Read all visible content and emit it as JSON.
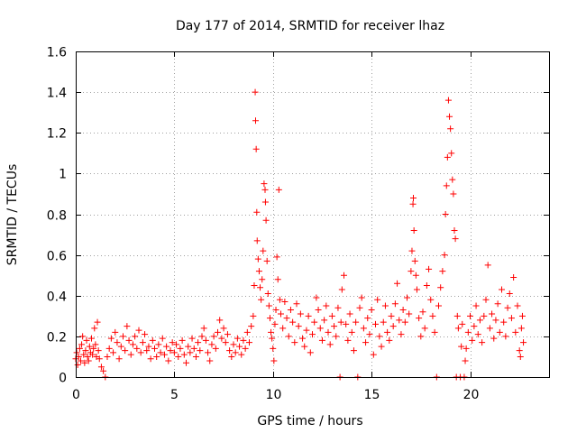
{
  "chart_data": {
    "type": "scatter",
    "title": "Day 177 of 2014, SRMTID for receiver lhaz",
    "xlabel": "GPS time / hours",
    "ylabel": "SRMTID / TECUs",
    "xlim": [
      0,
      24
    ],
    "ylim": [
      0,
      1.6
    ],
    "x_ticks": [
      0,
      5,
      10,
      15,
      20
    ],
    "x_tick_labels": [
      "0",
      "5",
      "10",
      "15",
      "20"
    ],
    "y_ticks": [
      0,
      0.2,
      0.4,
      0.6,
      0.8,
      1.0,
      1.2,
      1.4,
      1.6
    ],
    "y_tick_labels": [
      "0",
      "0.2",
      "0.4",
      "0.6",
      "0.8",
      "1",
      "1.2",
      "1.4",
      "1.6"
    ],
    "grid": true,
    "marker": "plus",
    "series": [
      {
        "name": "SRMTID",
        "color": "#ff0000",
        "points": [
          [
            0.0,
            0.09
          ],
          [
            0.05,
            0.12
          ],
          [
            0.1,
            0.06
          ],
          [
            0.15,
            0.1
          ],
          [
            0.2,
            0.14
          ],
          [
            0.25,
            0.08
          ],
          [
            0.3,
            0.16
          ],
          [
            0.35,
            0.2
          ],
          [
            0.4,
            0.11
          ],
          [
            0.45,
            0.07
          ],
          [
            0.5,
            0.13
          ],
          [
            0.55,
            0.18
          ],
          [
            0.6,
            0.1
          ],
          [
            0.65,
            0.08
          ],
          [
            0.7,
            0.15
          ],
          [
            0.75,
            0.12
          ],
          [
            0.8,
            0.19
          ],
          [
            0.85,
            0.11
          ],
          [
            0.9,
            0.14
          ],
          [
            0.95,
            0.24
          ],
          [
            1.0,
            0.16
          ],
          [
            1.05,
            0.1
          ],
          [
            1.1,
            0.27
          ],
          [
            1.15,
            0.13
          ],
          [
            1.2,
            0.09
          ],
          [
            1.3,
            0.05
          ],
          [
            1.4,
            0.03
          ],
          [
            1.5,
            0.0
          ],
          [
            1.6,
            0.1
          ],
          [
            1.7,
            0.14
          ],
          [
            1.8,
            0.19
          ],
          [
            1.9,
            0.12
          ],
          [
            2.0,
            0.22
          ],
          [
            2.1,
            0.17
          ],
          [
            2.2,
            0.09
          ],
          [
            2.3,
            0.15
          ],
          [
            2.4,
            0.2
          ],
          [
            2.5,
            0.13
          ],
          [
            2.6,
            0.25
          ],
          [
            2.7,
            0.18
          ],
          [
            2.8,
            0.11
          ],
          [
            2.9,
            0.16
          ],
          [
            3.0,
            0.2
          ],
          [
            3.1,
            0.14
          ],
          [
            3.2,
            0.23
          ],
          [
            3.3,
            0.12
          ],
          [
            3.4,
            0.17
          ],
          [
            3.5,
            0.21
          ],
          [
            3.6,
            0.13
          ],
          [
            3.7,
            0.15
          ],
          [
            3.8,
            0.09
          ],
          [
            3.9,
            0.18
          ],
          [
            4.0,
            0.14
          ],
          [
            4.1,
            0.1
          ],
          [
            4.2,
            0.16
          ],
          [
            4.3,
            0.12
          ],
          [
            4.4,
            0.19
          ],
          [
            4.5,
            0.11
          ],
          [
            4.6,
            0.15
          ],
          [
            4.7,
            0.08
          ],
          [
            4.8,
            0.13
          ],
          [
            4.9,
            0.17
          ],
          [
            5.0,
            0.12
          ],
          [
            5.1,
            0.16
          ],
          [
            5.2,
            0.1
          ],
          [
            5.3,
            0.14
          ],
          [
            5.4,
            0.18
          ],
          [
            5.5,
            0.11
          ],
          [
            5.6,
            0.07
          ],
          [
            5.7,
            0.15
          ],
          [
            5.8,
            0.12
          ],
          [
            5.9,
            0.19
          ],
          [
            6.0,
            0.14
          ],
          [
            6.1,
            0.1
          ],
          [
            6.2,
            0.17
          ],
          [
            6.3,
            0.13
          ],
          [
            6.4,
            0.2
          ],
          [
            6.5,
            0.24
          ],
          [
            6.6,
            0.18
          ],
          [
            6.7,
            0.12
          ],
          [
            6.8,
            0.08
          ],
          [
            6.9,
            0.16
          ],
          [
            7.0,
            0.2
          ],
          [
            7.1,
            0.14
          ],
          [
            7.2,
            0.22
          ],
          [
            7.3,
            0.28
          ],
          [
            7.4,
            0.19
          ],
          [
            7.5,
            0.24
          ],
          [
            7.6,
            0.17
          ],
          [
            7.7,
            0.21
          ],
          [
            7.8,
            0.13
          ],
          [
            7.9,
            0.1
          ],
          [
            8.0,
            0.16
          ],
          [
            8.1,
            0.12
          ],
          [
            8.2,
            0.19
          ],
          [
            8.3,
            0.15
          ],
          [
            8.4,
            0.11
          ],
          [
            8.5,
            0.18
          ],
          [
            8.6,
            0.14
          ],
          [
            8.7,
            0.22
          ],
          [
            8.8,
            0.17
          ],
          [
            8.9,
            0.25
          ],
          [
            9.0,
            0.3
          ],
          [
            9.05,
            0.45
          ],
          [
            9.1,
            1.4
          ],
          [
            9.12,
            1.26
          ],
          [
            9.15,
            1.12
          ],
          [
            9.18,
            0.81
          ],
          [
            9.2,
            0.67
          ],
          [
            9.25,
            0.58
          ],
          [
            9.3,
            0.52
          ],
          [
            9.35,
            0.44
          ],
          [
            9.4,
            0.38
          ],
          [
            9.45,
            0.48
          ],
          [
            9.5,
            0.62
          ],
          [
            9.55,
            0.95
          ],
          [
            9.6,
            0.92
          ],
          [
            9.62,
            0.86
          ],
          [
            9.65,
            0.77
          ],
          [
            9.7,
            0.57
          ],
          [
            9.75,
            0.41
          ],
          [
            9.8,
            0.35
          ],
          [
            9.85,
            0.29
          ],
          [
            9.9,
            0.22
          ],
          [
            9.95,
            0.19
          ],
          [
            10.0,
            0.14
          ],
          [
            10.05,
            0.08
          ],
          [
            10.1,
            0.26
          ],
          [
            10.15,
            0.33
          ],
          [
            10.2,
            0.59
          ],
          [
            10.25,
            0.48
          ],
          [
            10.3,
            0.92
          ],
          [
            10.35,
            0.38
          ],
          [
            10.4,
            0.31
          ],
          [
            10.5,
            0.24
          ],
          [
            10.6,
            0.37
          ],
          [
            10.7,
            0.29
          ],
          [
            10.8,
            0.2
          ],
          [
            10.9,
            0.33
          ],
          [
            11.0,
            0.27
          ],
          [
            11.1,
            0.17
          ],
          [
            11.2,
            0.36
          ],
          [
            11.3,
            0.25
          ],
          [
            11.4,
            0.31
          ],
          [
            11.5,
            0.19
          ],
          [
            11.6,
            0.15
          ],
          [
            11.7,
            0.23
          ],
          [
            11.8,
            0.3
          ],
          [
            11.9,
            0.12
          ],
          [
            12.0,
            0.21
          ],
          [
            12.1,
            0.27
          ],
          [
            12.2,
            0.39
          ],
          [
            12.3,
            0.33
          ],
          [
            12.4,
            0.24
          ],
          [
            12.5,
            0.18
          ],
          [
            12.6,
            0.28
          ],
          [
            12.7,
            0.35
          ],
          [
            12.8,
            0.22
          ],
          [
            12.9,
            0.16
          ],
          [
            13.0,
            0.3
          ],
          [
            13.1,
            0.25
          ],
          [
            13.2,
            0.2
          ],
          [
            13.3,
            0.34
          ],
          [
            13.4,
            0.0
          ],
          [
            13.45,
            0.27
          ],
          [
            13.5,
            0.43
          ],
          [
            13.6,
            0.5
          ],
          [
            13.7,
            0.26
          ],
          [
            13.8,
            0.18
          ],
          [
            13.9,
            0.31
          ],
          [
            14.0,
            0.22
          ],
          [
            14.1,
            0.13
          ],
          [
            14.2,
            0.27
          ],
          [
            14.3,
            0.0
          ],
          [
            14.4,
            0.34
          ],
          [
            14.5,
            0.39
          ],
          [
            14.6,
            0.24
          ],
          [
            14.7,
            0.17
          ],
          [
            14.8,
            0.29
          ],
          [
            14.9,
            0.21
          ],
          [
            15.0,
            0.33
          ],
          [
            15.1,
            0.11
          ],
          [
            15.2,
            0.26
          ],
          [
            15.3,
            0.38
          ],
          [
            15.4,
            0.2
          ],
          [
            15.5,
            0.15
          ],
          [
            15.6,
            0.27
          ],
          [
            15.7,
            0.35
          ],
          [
            15.8,
            0.22
          ],
          [
            15.9,
            0.18
          ],
          [
            16.0,
            0.3
          ],
          [
            16.1,
            0.25
          ],
          [
            16.2,
            0.36
          ],
          [
            16.3,
            0.46
          ],
          [
            16.4,
            0.28
          ],
          [
            16.5,
            0.21
          ],
          [
            16.6,
            0.33
          ],
          [
            16.7,
            0.27
          ],
          [
            16.8,
            0.39
          ],
          [
            16.9,
            0.31
          ],
          [
            17.0,
            0.52
          ],
          [
            17.05,
            0.62
          ],
          [
            17.1,
            0.85
          ],
          [
            17.12,
            0.88
          ],
          [
            17.15,
            0.72
          ],
          [
            17.2,
            0.57
          ],
          [
            17.25,
            0.5
          ],
          [
            17.3,
            0.43
          ],
          [
            17.4,
            0.29
          ],
          [
            17.5,
            0.2
          ],
          [
            17.6,
            0.32
          ],
          [
            17.7,
            0.24
          ],
          [
            17.8,
            0.45
          ],
          [
            17.9,
            0.53
          ],
          [
            18.0,
            0.38
          ],
          [
            18.1,
            0.3
          ],
          [
            18.2,
            0.22
          ],
          [
            18.3,
            0.0
          ],
          [
            18.4,
            0.35
          ],
          [
            18.5,
            0.44
          ],
          [
            18.6,
            0.52
          ],
          [
            18.7,
            0.6
          ],
          [
            18.75,
            0.8
          ],
          [
            18.8,
            0.94
          ],
          [
            18.85,
            1.08
          ],
          [
            18.9,
            1.36
          ],
          [
            18.95,
            1.28
          ],
          [
            19.0,
            1.22
          ],
          [
            19.05,
            1.1
          ],
          [
            19.1,
            0.97
          ],
          [
            19.15,
            0.9
          ],
          [
            19.2,
            0.72
          ],
          [
            19.25,
            0.68
          ],
          [
            19.3,
            0.0
          ],
          [
            19.35,
            0.3
          ],
          [
            19.4,
            0.24
          ],
          [
            19.5,
            0.0
          ],
          [
            19.55,
            0.15
          ],
          [
            19.6,
            0.26
          ],
          [
            19.7,
            0.0
          ],
          [
            19.75,
            0.08
          ],
          [
            19.8,
            0.14
          ],
          [
            19.9,
            0.22
          ],
          [
            20.0,
            0.3
          ],
          [
            20.1,
            0.18
          ],
          [
            20.2,
            0.25
          ],
          [
            20.3,
            0.35
          ],
          [
            20.4,
            0.21
          ],
          [
            20.5,
            0.28
          ],
          [
            20.6,
            0.17
          ],
          [
            20.7,
            0.3
          ],
          [
            20.8,
            0.38
          ],
          [
            20.9,
            0.55
          ],
          [
            21.0,
            0.24
          ],
          [
            21.1,
            0.31
          ],
          [
            21.2,
            0.19
          ],
          [
            21.3,
            0.28
          ],
          [
            21.4,
            0.36
          ],
          [
            21.5,
            0.22
          ],
          [
            21.6,
            0.43
          ],
          [
            21.7,
            0.27
          ],
          [
            21.8,
            0.2
          ],
          [
            21.9,
            0.34
          ],
          [
            22.0,
            0.41
          ],
          [
            22.1,
            0.29
          ],
          [
            22.2,
            0.49
          ],
          [
            22.3,
            0.22
          ],
          [
            22.4,
            0.35
          ],
          [
            22.5,
            0.13
          ],
          [
            22.55,
            0.1
          ],
          [
            22.6,
            0.24
          ],
          [
            22.65,
            0.3
          ],
          [
            22.7,
            0.17
          ]
        ]
      }
    ]
  }
}
